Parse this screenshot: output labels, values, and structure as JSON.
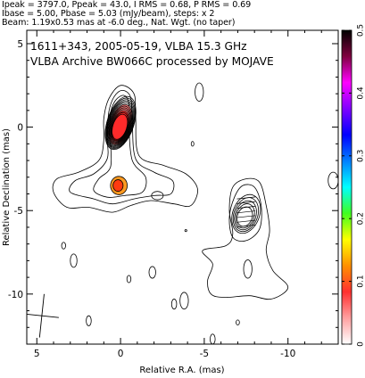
{
  "header": {
    "line1": "Ipeak = 3797.0, Ppeak = 43.0, I RMS = 0.68, P RMS = 0.69",
    "line2": "Ibase = 5.00, Pbase = 5.03 (mJy/beam), steps: x 2",
    "line3": "Beam: 1.19x0.53 mas at -6.0 deg., Nat. Wgt. (no taper)"
  },
  "chart_data": {
    "type": "contour",
    "title": "",
    "annotation_line1": "1611+343, 2005-05-19, VLBA 15.3 GHz",
    "annotation_line2": "VLBA Archive BW066C processed by MOJAVE",
    "xlabel": "Relative R.A. (mas)",
    "ylabel": "Relative Declination (mas)",
    "xlim": [
      5.6,
      -13.0
    ],
    "ylim": [
      -13.0,
      5.8
    ],
    "x_ticks": [
      5,
      0,
      -5,
      -10
    ],
    "x_tick_labels": [
      "5",
      "0",
      "-5",
      "-10"
    ],
    "y_ticks": [
      5,
      0,
      -5,
      -10
    ],
    "y_tick_labels": [
      "5",
      "0",
      "-5",
      "-10"
    ],
    "colorbar": {
      "min": 0.0,
      "max": 0.5,
      "ticks": [
        0,
        0.1,
        0.2,
        0.3,
        0.4,
        0.5
      ],
      "tick_labels": [
        "0",
        "0.1",
        "0.2",
        "0.3",
        "0.4",
        "0.5"
      ],
      "colors": [
        "#ffffff",
        "#ffa0a0",
        "#ff3030",
        "#ff9000",
        "#ffff00",
        "#40ff20",
        "#00ffff",
        "#0080ff",
        "#0000ff",
        "#8000ff",
        "#ff00ff",
        "#800040",
        "#000000"
      ]
    },
    "core": {
      "x": 0.0,
      "y": 0.0,
      "rings": 12
    },
    "jet_knot": {
      "x": 0.1,
      "y": -3.5
    },
    "secondary": {
      "x": -7.5,
      "y": -5.2,
      "rings": 5
    },
    "beam": {
      "major": 1.19,
      "minor": 0.53,
      "pa_deg": -6.0,
      "center": [
        4.7,
        -11.3
      ]
    }
  }
}
